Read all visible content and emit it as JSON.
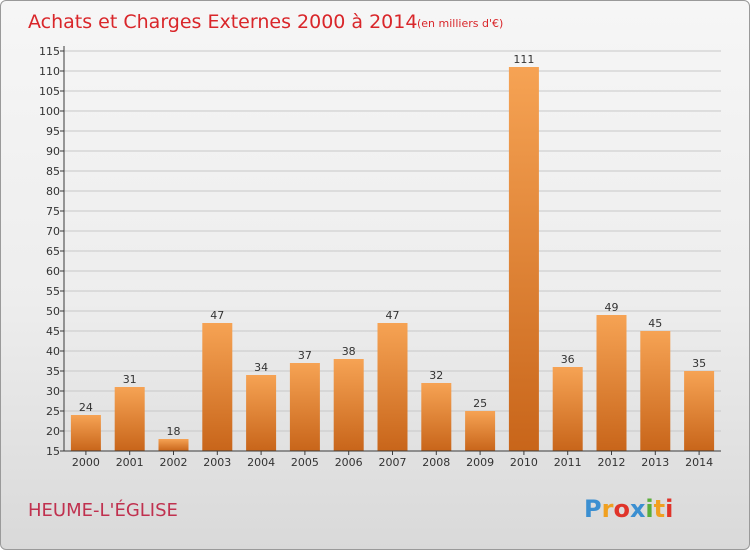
{
  "header": {
    "title": "Achats et Charges Externes 2000 à 2014",
    "subtitle": "(en milliers d'€)"
  },
  "footer": {
    "commune": "HEUME-L'ÉGLISE",
    "logo_text": "Proxiti"
  },
  "colors": {
    "title": "#d9262a",
    "commune": "#c0314f",
    "bar_light": "#f6a354",
    "bar_dark": "#c8651a",
    "axis": "#3a3a3a",
    "grid": "#c8c8c8"
  },
  "chart_data": {
    "type": "bar",
    "title": "Achats et Charges Externes 2000 à 2014",
    "subtitle": "(en milliers d'€)",
    "categories": [
      "2000",
      "2001",
      "2002",
      "2003",
      "2004",
      "2005",
      "2006",
      "2007",
      "2008",
      "2009",
      "2010",
      "2011",
      "2012",
      "2013",
      "2014"
    ],
    "values": [
      24,
      31,
      18,
      47,
      34,
      37,
      38,
      47,
      32,
      25,
      111,
      36,
      49,
      45,
      35
    ],
    "ylim": [
      15,
      115
    ],
    "yticks": [
      15,
      20,
      25,
      30,
      35,
      40,
      45,
      50,
      55,
      60,
      65,
      70,
      75,
      80,
      85,
      90,
      95,
      100,
      105,
      110,
      115
    ],
    "grid": true,
    "data_labels": true
  }
}
